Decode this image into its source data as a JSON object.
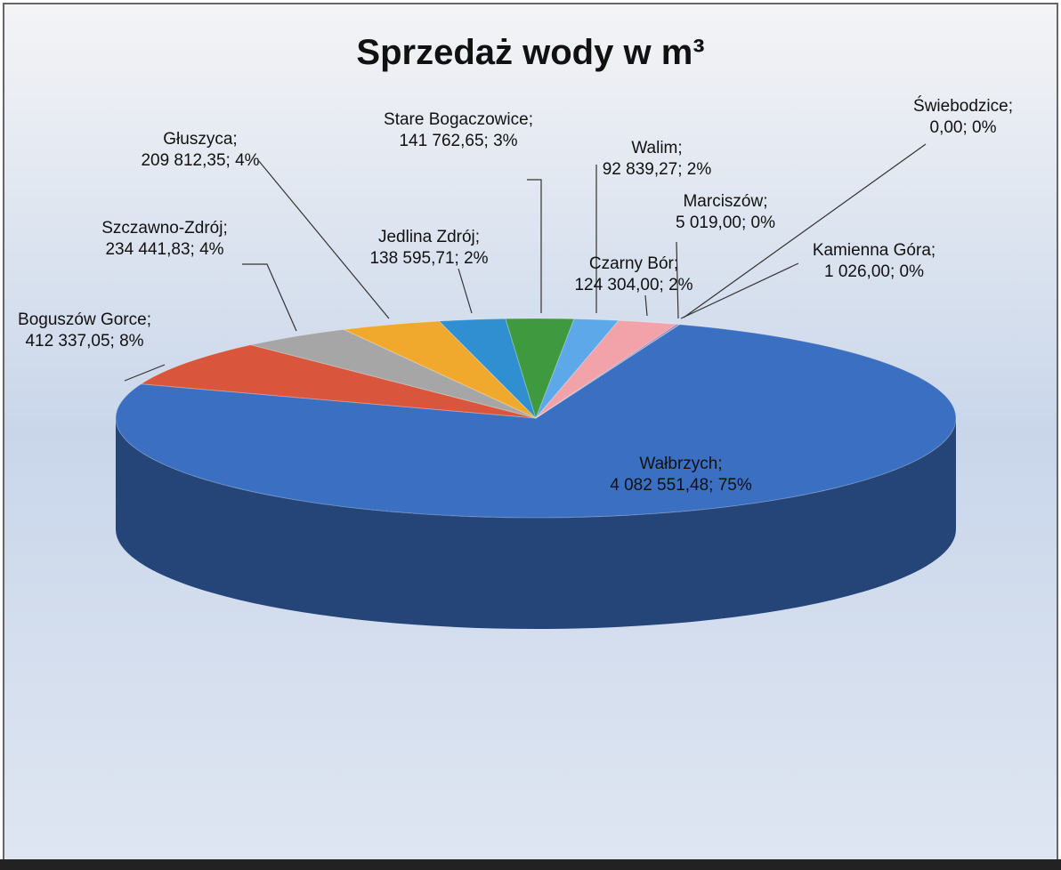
{
  "chart_data": {
    "type": "pie3d",
    "title": "Sprzedaż wody w m³",
    "categories": [
      "Wałbrzych",
      "Boguszów Gorce",
      "Szczawno-Zdrój",
      "Głuszyca",
      "Jedlina Zdrój",
      "Stare Bogaczowice",
      "Walim",
      "Czarny Bór",
      "Marciszów",
      "Kamienna Góra",
      "Świebodzice"
    ],
    "values": [
      4082551.48,
      412337.05,
      234441.83,
      209812.35,
      138595.71,
      141762.65,
      92839.27,
      124304.0,
      5019.0,
      1026.0,
      0.0
    ],
    "value_labels": [
      "4 082 551,48; 75%",
      "412 337,05; 8%",
      "234 441,83; 4%",
      "209 812,35; 4%",
      "138 595,71; 2%",
      "141 762,65; 3%",
      "92 839,27; 2%",
      "124 304,00; 2%",
      "5 019,00; 0%",
      "1 026,00; 0%",
      "0,00; 0%"
    ],
    "colors": [
      "#3b6fc1",
      "#d9553b",
      "#a6a6a6",
      "#f1a92d",
      "#2f8fd0",
      "#3f993f",
      "#5ca8e8",
      "#f2a3aa",
      "#8b6bb8",
      "#4bb3b3",
      "#b0c4de"
    ]
  }
}
